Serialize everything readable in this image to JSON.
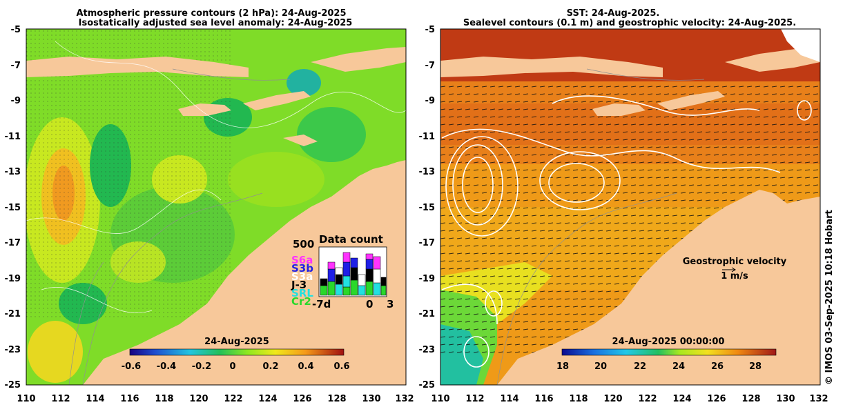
{
  "left_panel": {
    "title_line1": "Atmospheric pressure contours (2 hPa): 24-Aug-2025",
    "title_line2": "Isostatically adjusted sea level anomaly: 24-Aug-2025",
    "colorbar_title": "24-Aug-2025",
    "colorbar_ticks": [
      "-0.6",
      "-0.4",
      "-0.2",
      "0",
      "0.2",
      "0.4",
      "0.6"
    ],
    "data_count": {
      "title": "Data count",
      "max_label": "500",
      "satellites": [
        {
          "name": "S6a",
          "color": "#ff33ff"
        },
        {
          "name": "S3b",
          "color": "#1f1fe6"
        },
        {
          "name": "S3a",
          "color": "#ffffff"
        },
        {
          "name": "J-3",
          "color": "#000000"
        },
        {
          "name": "SRL",
          "color": "#22e0e0"
        },
        {
          "name": "Cr2",
          "color": "#2ad82a"
        }
      ],
      "x_labels": [
        "-7d",
        "0",
        "3"
      ]
    }
  },
  "right_panel": {
    "title_line1": "SST: 24-Aug-2025.",
    "title_line2": "Sealevel contours (0.1 m) and geostrophic velocity: 24-Aug-2025.",
    "colorbar_title": "24-Aug-2025 00:00:00",
    "colorbar_ticks": [
      "18",
      "20",
      "22",
      "24",
      "26",
      "28"
    ],
    "velocity_label": "Geostrophic velocity",
    "velocity_scale": "1 m/s"
  },
  "axes": {
    "lat_ticks": [
      "-5",
      "-7",
      "-9",
      "-11",
      "-13",
      "-15",
      "-17",
      "-19",
      "-21",
      "-23",
      "-25"
    ],
    "lon_ticks": [
      "110",
      "112",
      "114",
      "116",
      "118",
      "120",
      "122",
      "124",
      "126",
      "128",
      "130",
      "132"
    ]
  },
  "credit": "© IMOS 03-Sep-2025 10:18 Hobart"
}
